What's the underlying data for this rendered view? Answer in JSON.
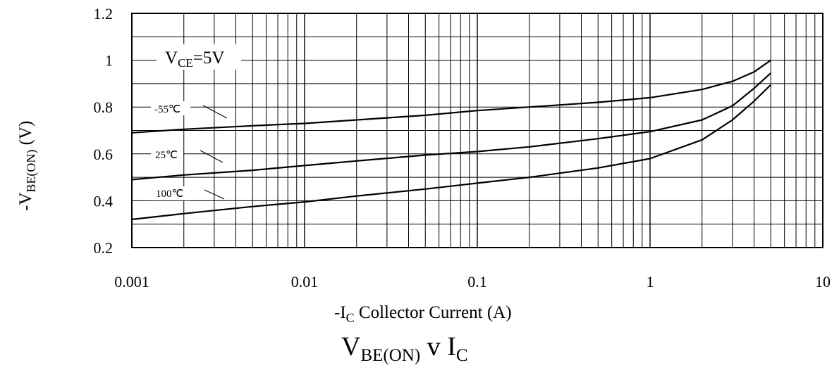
{
  "chart_data": {
    "type": "line",
    "x_scale": "log",
    "xlim": [
      0.001,
      10
    ],
    "ylim": [
      0.2,
      1.2
    ],
    "x_ticks": [
      "0.001",
      "0.01",
      "0.1",
      "1",
      "10"
    ],
    "y_ticks": [
      "0.2",
      "0.4",
      "0.6",
      "0.8",
      "1",
      "1.2"
    ],
    "grid": true,
    "xlabel": {
      "prefix": "-I",
      "sub": "C",
      "rest": " Collector Current (A)"
    },
    "ylabel": {
      "prefix": "-V",
      "sub": "BE(ON)",
      "rest": " (V)"
    },
    "title": {
      "main1": "V",
      "sub1": "BE(ON)",
      "mid": " v I",
      "sub2": "C"
    },
    "annotation": {
      "main1": "V",
      "sub": "CE",
      "rest": "=5V"
    },
    "series": [
      {
        "name": "-55℃",
        "x": [
          0.001,
          0.002,
          0.005,
          0.01,
          0.02,
          0.05,
          0.1,
          0.2,
          0.5,
          1,
          2,
          3,
          4,
          5
        ],
        "y": [
          0.69,
          0.705,
          0.72,
          0.73,
          0.745,
          0.765,
          0.785,
          0.8,
          0.82,
          0.84,
          0.875,
          0.91,
          0.95,
          1.0
        ]
      },
      {
        "name": "25℃",
        "x": [
          0.001,
          0.002,
          0.005,
          0.01,
          0.02,
          0.05,
          0.1,
          0.2,
          0.5,
          1,
          2,
          3,
          4,
          5
        ],
        "y": [
          0.49,
          0.51,
          0.53,
          0.55,
          0.57,
          0.595,
          0.61,
          0.63,
          0.665,
          0.695,
          0.745,
          0.805,
          0.88,
          0.945
        ]
      },
      {
        "name": "100℃",
        "x": [
          0.001,
          0.002,
          0.005,
          0.01,
          0.02,
          0.05,
          0.1,
          0.2,
          0.5,
          1,
          2,
          3,
          4,
          5
        ],
        "y": [
          0.32,
          0.345,
          0.375,
          0.395,
          0.42,
          0.45,
          0.475,
          0.5,
          0.54,
          0.58,
          0.66,
          0.745,
          0.825,
          0.895
        ]
      }
    ]
  }
}
